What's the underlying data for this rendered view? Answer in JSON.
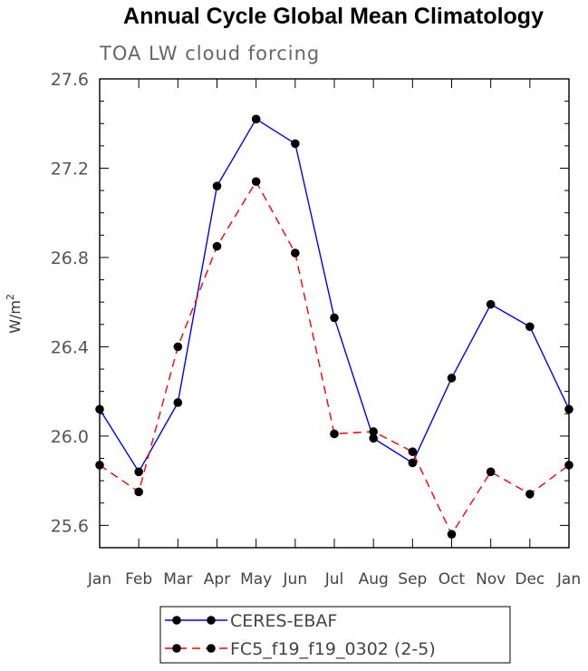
{
  "chart_data": {
    "type": "line",
    "title": "Annual Cycle Global Mean Climatology",
    "subtitle": "TOA LW cloud forcing",
    "xlabel": "",
    "ylabel": "W/m",
    "ylabel_superscript": "2",
    "categories": [
      "Jan",
      "Feb",
      "Mar",
      "Apr",
      "May",
      "Jun",
      "Jul",
      "Aug",
      "Sep",
      "Oct",
      "Nov",
      "Dec",
      "Jan"
    ],
    "ylim": [
      25.5,
      27.6
    ],
    "yticks": [
      25.6,
      26.0,
      26.4,
      26.8,
      27.2,
      27.6
    ],
    "ytick_labels": [
      "25.6",
      "26.0",
      "26.4",
      "26.8",
      "27.2",
      "27.6"
    ],
    "series": [
      {
        "name": "CERES-EBAF",
        "color": "#0000ff",
        "dash": "solid",
        "values": [
          26.12,
          25.84,
          26.15,
          27.12,
          27.42,
          27.31,
          26.53,
          25.99,
          25.88,
          26.26,
          26.59,
          26.49,
          26.12
        ]
      },
      {
        "name": "FC5_f19_f19_0302 (2-5)",
        "color": "#ff0000",
        "dash": "dashed",
        "values": [
          25.87,
          25.75,
          26.4,
          26.85,
          27.14,
          26.82,
          26.01,
          26.02,
          25.93,
          25.56,
          25.84,
          25.74,
          25.87
        ]
      }
    ],
    "grid": false,
    "legend_position": "bottom"
  }
}
